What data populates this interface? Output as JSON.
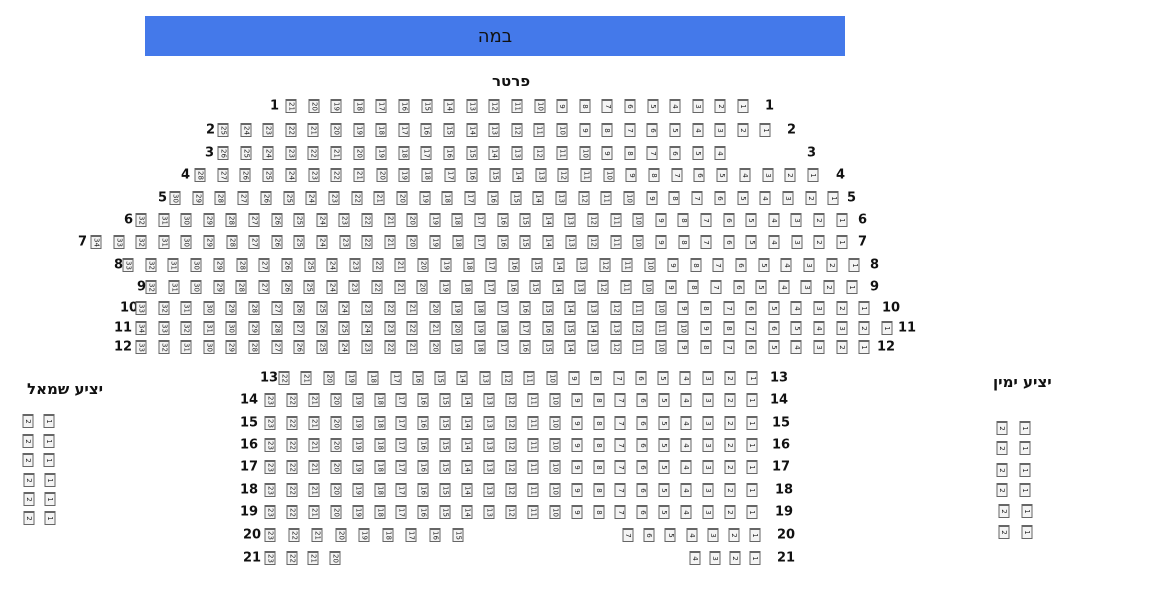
{
  "stage": {
    "label": "במה",
    "color": "#4479ea"
  },
  "sections": {
    "parter": {
      "title": "פרטר",
      "rows": [
        {
          "row": "1",
          "blocks": [
            [
              21,
              1
            ]
          ]
        },
        {
          "row": "2",
          "blocks": [
            [
              25,
              1
            ]
          ]
        },
        {
          "row": "3",
          "blocks": [
            [
              26,
              4
            ]
          ]
        },
        {
          "row": "4",
          "blocks": [
            [
              28,
              1
            ]
          ]
        },
        {
          "row": "5",
          "blocks": [
            [
              30,
              1
            ]
          ]
        },
        {
          "row": "6",
          "blocks": [
            [
              32,
              1
            ]
          ]
        },
        {
          "row": "7",
          "blocks": [
            [
              34,
              1
            ]
          ]
        },
        {
          "row": "8",
          "blocks": [
            [
              33,
              1
            ]
          ]
        },
        {
          "row": "9",
          "blocks": [
            [
              32,
              1
            ]
          ]
        },
        {
          "row": "10",
          "blocks": [
            [
              33,
              1
            ]
          ]
        },
        {
          "row": "11",
          "blocks": [
            [
              34,
              1
            ]
          ]
        },
        {
          "row": "12",
          "blocks": [
            [
              33,
              1
            ]
          ]
        },
        {
          "row": "13",
          "blocks": [
            [
              22,
              1
            ]
          ]
        },
        {
          "row": "14",
          "blocks": [
            [
              23,
              1
            ]
          ]
        },
        {
          "row": "15",
          "blocks": [
            [
              23,
              1
            ]
          ]
        },
        {
          "row": "16",
          "blocks": [
            [
              23,
              1
            ]
          ]
        },
        {
          "row": "17",
          "blocks": [
            [
              23,
              1
            ]
          ]
        },
        {
          "row": "18",
          "blocks": [
            [
              23,
              1
            ]
          ]
        },
        {
          "row": "19",
          "blocks": [
            [
              23,
              1
            ]
          ]
        },
        {
          "row": "20",
          "blocks": [
            [
              23,
              15
            ],
            [
              7,
              1
            ]
          ]
        },
        {
          "row": "21",
          "blocks": [
            [
              23,
              20
            ],
            [
              4,
              1
            ]
          ]
        }
      ]
    },
    "left_balcony": {
      "title": "יציע שמאל",
      "rows": [
        [
          2,
          1
        ],
        [
          2,
          1
        ],
        [
          2,
          1
        ],
        [
          2,
          1
        ],
        [
          2,
          1
        ],
        [
          2,
          1
        ]
      ]
    },
    "right_balcony": {
      "title": "יציע ימין",
      "rows": [
        [
          2,
          1
        ],
        [
          2,
          1
        ],
        [
          2,
          1
        ],
        [
          2,
          1
        ],
        [
          2,
          1
        ],
        [
          2,
          1
        ]
      ]
    }
  }
}
